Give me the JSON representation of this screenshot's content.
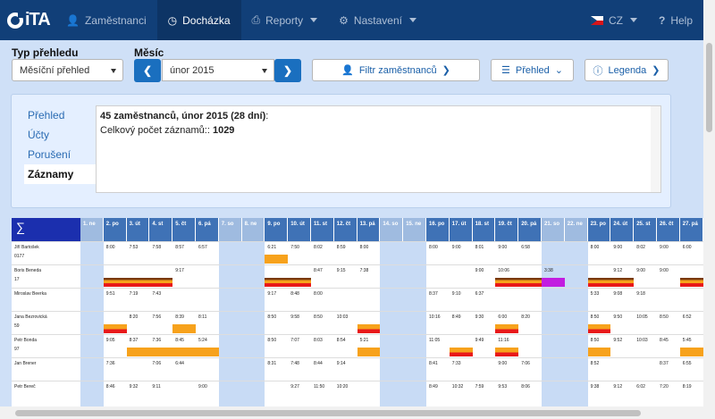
{
  "app": {
    "logo_text": "iTA"
  },
  "nav": {
    "employees": "Zaměstnanci",
    "attendance": "Docházka",
    "reports": "Reporty",
    "settings": "Nastavení",
    "language": "CZ",
    "help": "Help"
  },
  "controls": {
    "type_label": "Typ přehledu",
    "type_value": "Měsíční přehled",
    "month_label": "Měsíc",
    "month_value": "únor 2015",
    "filter_button": "Filtr zaměstnanců",
    "overview_button": "Přehled",
    "legend_button": "Legenda"
  },
  "sidenav": {
    "items": [
      "Přehled",
      "Účty",
      "Porušení",
      "Záznamy"
    ],
    "active_index": 3
  },
  "info": {
    "line1_bold": "45 zaměstnanců, únor 2015 (28 dní)",
    "line1_suffix": ":",
    "line2_prefix": "Celkový počet záznamů:: ",
    "line2_bold": "1029"
  },
  "grid": {
    "corner_symbol": "∑",
    "days": [
      "1. ne",
      "2. po",
      "3. út",
      "4. st",
      "5. čt",
      "6. pá",
      "7. so",
      "8. ne",
      "9. po",
      "10. út",
      "11. st",
      "12. čt",
      "13. pá",
      "14. so",
      "15. ne",
      "16. po",
      "17. út",
      "18. st",
      "19. čt",
      "20. pá",
      "21. so",
      "22. ne",
      "23. po",
      "24. út",
      "25. st",
      "26. čt",
      "27. pá"
    ],
    "weekend_days": [
      1,
      7,
      8,
      14,
      15,
      21,
      22
    ],
    "rows": [
      {
        "name": "Jiří Bartošek",
        "sub": "0177",
        "times": {
          "2": "8:00",
          "3": "7:53",
          "4": "7:58",
          "5": "8:57",
          "6": "6:57",
          "9": "6:21",
          "10": "7:50",
          "11": "8:02",
          "12": "8:59",
          "13": "8:00",
          "16": "8:00",
          "17": "9:00",
          "18": "8:01",
          "19": "9:00",
          "20": "6:58",
          "23": "8:00",
          "24": "9:00",
          "25": "8:02",
          "26": "9:00",
          "27": "6:00"
        }
      },
      {
        "name": "Boris Beneda",
        "sub": "17",
        "times": {
          "5": "9:17",
          "9": "",
          "11": "8:47",
          "12": "9:15",
          "13": "7:38",
          "18": "9:00",
          "19": "10:06",
          "21": "3:38",
          "24": "9:12",
          "25": "9:00",
          "26": "9:00"
        }
      },
      {
        "name": "Miroslav Beerka",
        "sub": "",
        "times": {
          "2": "9:51",
          "3": "7:19",
          "4": "7:43",
          "9": "9:17",
          "10": "8:48",
          "11": "8:00",
          "16": "8:37",
          "17": "9:10",
          "18": "6:37",
          "23": "5:33",
          "24": "9:08",
          "25": "9:18"
        }
      },
      {
        "name": "Jana Bezrovická",
        "sub": "59",
        "times": {
          "3": "8:20",
          "4": "7:56",
          "5": "8:39",
          "6": "8:11",
          "9": "8:50",
          "10": "9:58",
          "11": "8:50",
          "12": "10:03",
          "16": "10:16",
          "17": "8:49",
          "18": "9:30",
          "19": "6:00",
          "20": "8:20",
          "23": "8:50",
          "24": "9:50",
          "25": "10:05",
          "26": "8:50",
          "27": "6:52"
        }
      },
      {
        "name": "Petr Bonda",
        "sub": "97",
        "times": {
          "2": "9:05",
          "3": "8:37",
          "4": "7:36",
          "5": "8:45",
          "6": "5:24",
          "9": "8:50",
          "10": "7:07",
          "11": "8:03",
          "12": "8:54",
          "13": "5:21",
          "16": "11:05",
          "18": "9:49",
          "19": "11:16",
          "23": "8:50",
          "24": "9:52",
          "25": "10:03",
          "26": "8:45",
          "27": "5:45"
        }
      },
      {
        "name": "Jan Brener",
        "sub": "",
        "times": {
          "2": "7:36",
          "4": "7:06",
          "5": "6:44",
          "9": "8:31",
          "10": "7:48",
          "11": "8:44",
          "12": "9:14",
          "16": "8:41",
          "17": "7:33",
          "19": "9:00",
          "20": "7:06",
          "23": "8:52",
          "26": "8:37",
          "27": "6:55"
        }
      },
      {
        "name": "Petr Bereč",
        "sub": "",
        "times": {
          "2": "8:46",
          "3": "9:32",
          "4": "9:11",
          "6": "9:00",
          "10": "9:27",
          "11": "11:50",
          "12": "10:20",
          "16": "8:49",
          "17": "10:32",
          "18": "7:59",
          "19": "9:53",
          "20": "8:06",
          "23": "9:38",
          "24": "9:12",
          "25": "6:02",
          "26": "7:20",
          "27": "8:19"
        }
      }
    ]
  },
  "colors": {
    "nav_bg": "#113f78",
    "accent": "#1a6fbf",
    "warning_orange": "#f7a21c",
    "error_red": "#e8191a",
    "purple": "#c21de0"
  }
}
